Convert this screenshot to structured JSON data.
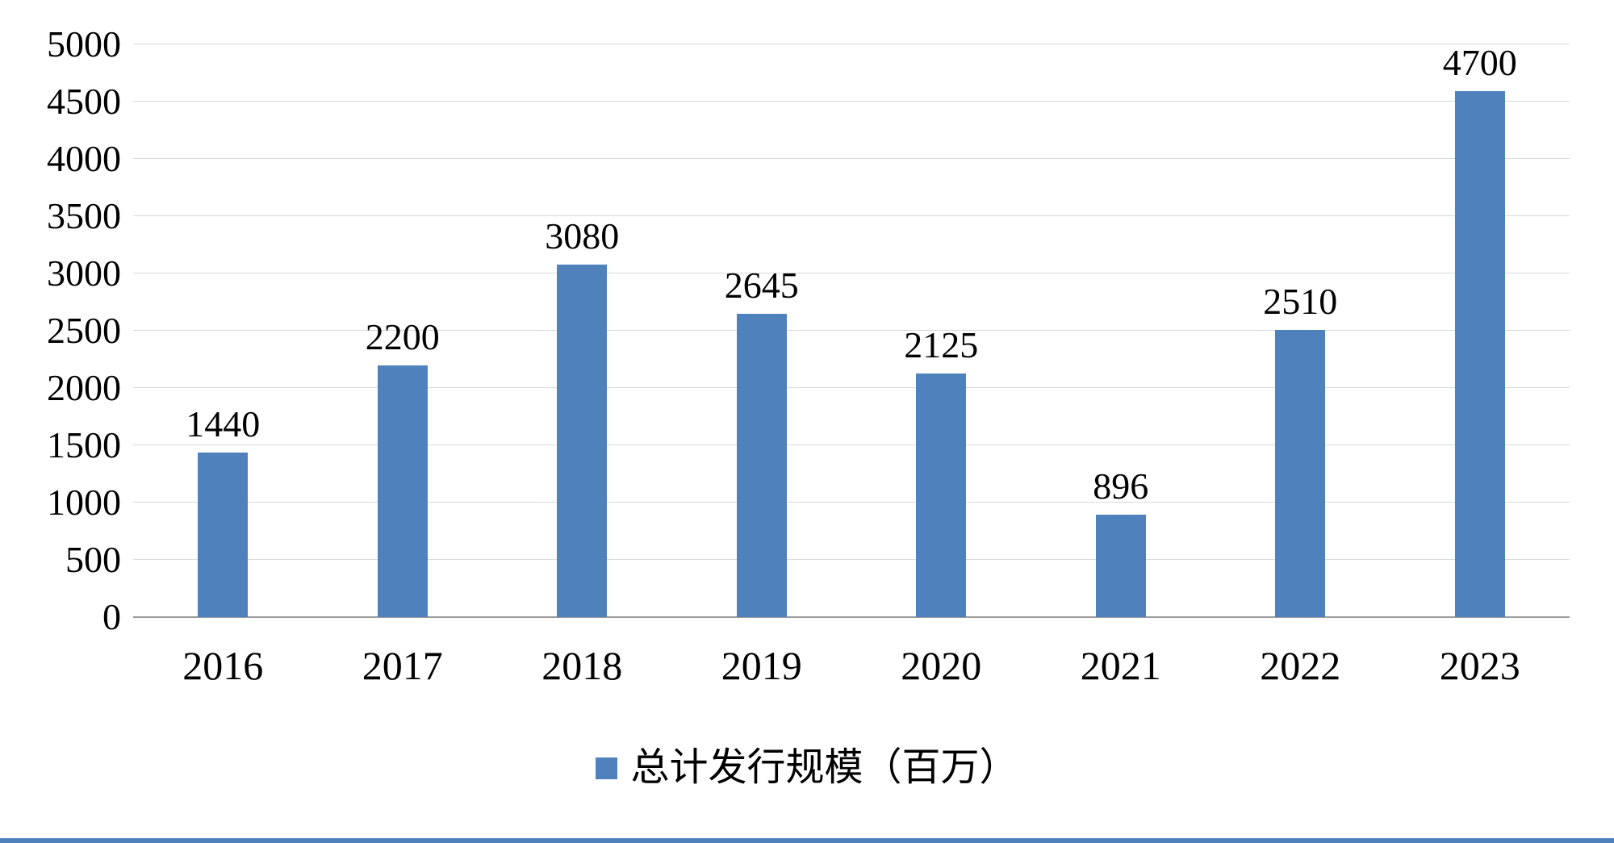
{
  "page": {
    "background": "#ffffff",
    "bottom_border_color": "#4F81BD"
  },
  "chart_data": {
    "type": "bar",
    "title": "",
    "categories": [
      "2016",
      "2017",
      "2018",
      "2019",
      "2020",
      "2021",
      "2022",
      "2023"
    ],
    "series": [
      {
        "name": "总计发行规模（百万）",
        "values": [
          1440,
          2200,
          3080,
          2645,
          2125,
          896,
          2510,
          4700
        ]
      }
    ],
    "ylim": [
      0,
      5000
    ],
    "ytick_step": 500,
    "yticks": [
      0,
      500,
      1000,
      1500,
      2000,
      2500,
      3000,
      3500,
      4000,
      4500,
      5000
    ],
    "data_labels": true,
    "grid": true,
    "legend_position": "bottom",
    "bar_color": "#4F81BD",
    "gridline_color": "#D9D9D9",
    "axis_line_color": "#9B9B9B",
    "text_color": "#000000"
  },
  "legend": {
    "swatch_icon": "legend-square-swatch",
    "label": "总计发行规模（百万）"
  }
}
